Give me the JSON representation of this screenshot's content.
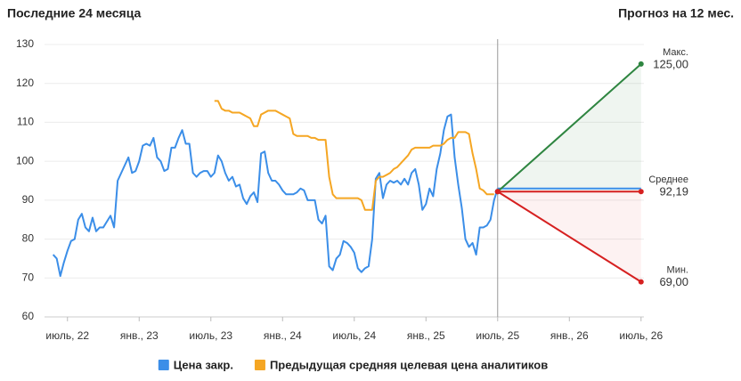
{
  "chart_data": {
    "type": "line",
    "title": "Последние 24 месяца",
    "subtitle": "Прогноз на 12 мес.",
    "xlim": [
      2022.34,
      2026.52
    ],
    "xticks": [
      {
        "value": 2022.5,
        "label": "июль, 22"
      },
      {
        "value": 2023,
        "label": "янв., 23"
      },
      {
        "value": 2023.5,
        "label": "июль, 23"
      },
      {
        "value": 2024,
        "label": "янв., 24"
      },
      {
        "value": 2024.5,
        "label": "июль, 24"
      },
      {
        "value": 2025,
        "label": "янв., 25"
      },
      {
        "value": 2025.5,
        "label": "июль, 25"
      },
      {
        "value": 2026,
        "label": "янв., 26"
      },
      {
        "value": 2026.5,
        "label": "июль, 26"
      }
    ],
    "ylim": [
      60,
      130
    ],
    "yticks": [
      60,
      70,
      80,
      90,
      100,
      110,
      120,
      130
    ],
    "grid": true,
    "legend": "bottom",
    "series": [
      {
        "name": "Цена закр.",
        "color": "#3b8ee8",
        "x": [
          2022.4,
          2022.425,
          2022.45,
          2022.475,
          2022.5,
          2022.525,
          2022.55,
          2022.575,
          2022.6,
          2022.625,
          2022.65,
          2022.675,
          2022.7,
          2022.725,
          2022.75,
          2022.775,
          2022.8,
          2022.825,
          2022.85,
          2022.875,
          2022.9,
          2022.925,
          2022.95,
          2022.975,
          2023,
          2023.025,
          2023.05,
          2023.075,
          2023.1,
          2023.125,
          2023.15,
          2023.175,
          2023.2,
          2023.225,
          2023.25,
          2023.275,
          2023.3,
          2023.325,
          2023.35,
          2023.375,
          2023.4,
          2023.425,
          2023.45,
          2023.475,
          2023.5,
          2023.525,
          2023.55,
          2023.575,
          2023.6,
          2023.625,
          2023.65,
          2023.675,
          2023.7,
          2023.725,
          2023.75,
          2023.775,
          2023.8,
          2023.825,
          2023.85,
          2023.875,
          2023.9,
          2023.925,
          2023.95,
          2023.975,
          2024,
          2024.025,
          2024.05,
          2024.075,
          2024.1,
          2024.125,
          2024.15,
          2024.175,
          2024.2,
          2024.225,
          2024.25,
          2024.275,
          2024.3,
          2024.325,
          2024.35,
          2024.375,
          2024.4,
          2024.425,
          2024.45,
          2024.475,
          2024.5,
          2024.525,
          2024.55,
          2024.575,
          2024.6,
          2024.625,
          2024.65,
          2024.675,
          2024.7,
          2024.725,
          2024.75,
          2024.775,
          2024.8,
          2024.825,
          2024.85,
          2024.875,
          2024.9,
          2024.925,
          2024.95,
          2024.975,
          2025,
          2025.025,
          2025.05,
          2025.075,
          2025.1,
          2025.125,
          2025.15,
          2025.175,
          2025.2,
          2025.225,
          2025.25,
          2025.275,
          2025.3,
          2025.325,
          2025.35,
          2025.375,
          2025.4,
          2025.425,
          2025.45,
          2025.475,
          2025.5
        ],
        "values": [
          76,
          75,
          70.5,
          74,
          77,
          79.5,
          80,
          85,
          86.5,
          83,
          82,
          85.5,
          82,
          83,
          83,
          84.5,
          86,
          83,
          95,
          97,
          99,
          101,
          97,
          97.5,
          100,
          104,
          104.5,
          104,
          106,
          101,
          100,
          97.5,
          98,
          103.5,
          103.5,
          106,
          108,
          104.5,
          104.5,
          97,
          96,
          97,
          97.5,
          97.5,
          96,
          97,
          101.5,
          100,
          97,
          95,
          96,
          93.5,
          94,
          90.5,
          89,
          91,
          92,
          89.5,
          102,
          102.5,
          97,
          95,
          95,
          94,
          92.5,
          91.5,
          91.5,
          91.5,
          92,
          93,
          92.5,
          90,
          90,
          90,
          85,
          84,
          86,
          73,
          72,
          75,
          76,
          79.5,
          79,
          78,
          76.5,
          72.5,
          71.5,
          72.5,
          73,
          80,
          95.5,
          97,
          90.5,
          94,
          95,
          94.5,
          95,
          94,
          95.5,
          94,
          97,
          98,
          94,
          87.5,
          89,
          93,
          91,
          98,
          102,
          108,
          111.5,
          112,
          101,
          94,
          88,
          80,
          78,
          79,
          76,
          83,
          83,
          83.5,
          85,
          90,
          93
        ]
      },
      {
        "name": "Предыдущая средняя целевая цена аналитиков",
        "color": "#f5a623",
        "x": [
          2023.525,
          2023.55,
          2023.575,
          2023.6,
          2023.625,
          2023.65,
          2023.675,
          2023.7,
          2023.725,
          2023.75,
          2023.775,
          2023.8,
          2023.825,
          2023.85,
          2023.875,
          2023.9,
          2023.925,
          2023.95,
          2023.975,
          2024,
          2024.025,
          2024.05,
          2024.075,
          2024.1,
          2024.125,
          2024.15,
          2024.175,
          2024.2,
          2024.225,
          2024.25,
          2024.275,
          2024.3,
          2024.325,
          2024.35,
          2024.375,
          2024.4,
          2024.425,
          2024.45,
          2024.475,
          2024.5,
          2024.525,
          2024.55,
          2024.575,
          2024.6,
          2024.625,
          2024.65,
          2024.675,
          2024.7,
          2024.725,
          2024.75,
          2024.775,
          2024.8,
          2024.825,
          2024.85,
          2024.875,
          2024.9,
          2024.925,
          2024.95,
          2024.975,
          2025,
          2025.025,
          2025.05,
          2025.075,
          2025.1,
          2025.125,
          2025.15,
          2025.175,
          2025.2,
          2025.225,
          2025.25,
          2025.275,
          2025.3,
          2025.325,
          2025.35,
          2025.375,
          2025.4,
          2025.425,
          2025.45,
          2025.475
        ],
        "values": [
          115.5,
          115.5,
          113.5,
          113,
          113,
          112.5,
          112.5,
          112.5,
          112,
          111.5,
          111,
          109,
          109,
          112,
          112.5,
          113,
          113,
          113,
          112.5,
          112,
          111.5,
          111,
          107,
          106.5,
          106.5,
          106.5,
          106.5,
          106,
          106,
          105.5,
          105.5,
          105.5,
          96,
          91.5,
          90.5,
          90.5,
          90.5,
          90.5,
          90.5,
          90.5,
          90.5,
          90,
          87.5,
          87.5,
          87.5,
          95,
          96,
          96,
          96.5,
          97,
          98,
          98.5,
          99.5,
          100.5,
          101.5,
          103,
          103.5,
          103.5,
          103.5,
          103.5,
          103.5,
          104,
          104,
          104,
          104.5,
          105.5,
          106,
          106,
          107.5,
          107.5,
          107.5,
          107,
          102,
          98,
          93,
          92.5,
          91.5,
          91.5,
          91.5
        ]
      }
    ],
    "forecast": {
      "x": [
        2025.5,
        2026.5
      ],
      "current": 93,
      "current_color": "#3b8ee8",
      "high": {
        "label": "Макс.",
        "values": [
          92.19,
          125
        ],
        "value_label": "125,00",
        "color": "#2e8540"
      },
      "mean": {
        "label": "Среднее",
        "values": [
          92.19,
          92.19
        ],
        "value_label": "92,19",
        "color": "#d62020"
      },
      "low": {
        "label": "Мин.",
        "values": [
          92.19,
          69
        ],
        "value_label": "69,00",
        "color": "#d62020"
      }
    }
  }
}
